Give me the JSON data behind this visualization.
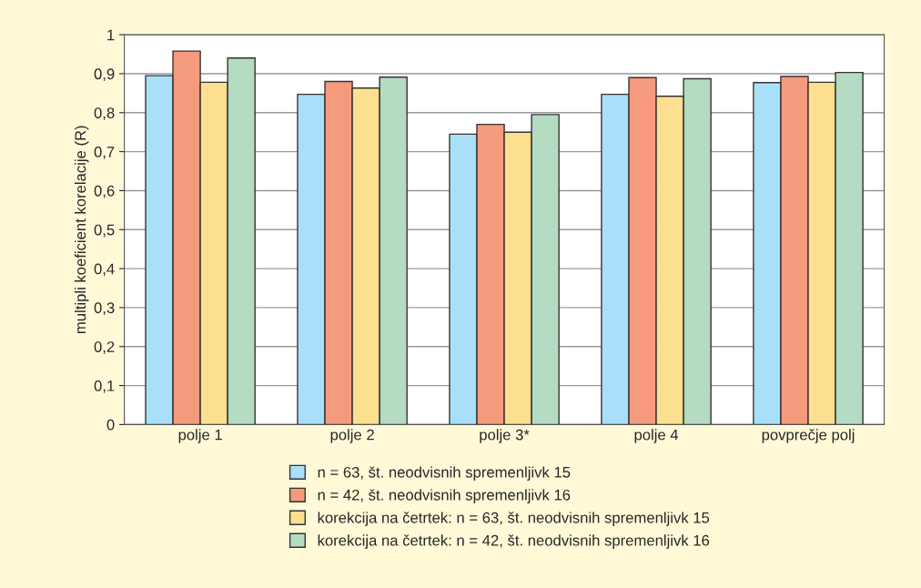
{
  "chart_data": {
    "type": "bar",
    "ylabel": "multipli koeficient korelacije (R)",
    "categories": [
      "polje 1",
      "polje 2",
      "polje 3*",
      "polje 4",
      "povprečje polj"
    ],
    "series": [
      {
        "name": "n = 63, št. neodvisnih spremenljivk 15",
        "color": "#aadff9",
        "values": [
          0.895,
          0.847,
          0.745,
          0.847,
          0.877
        ]
      },
      {
        "name": "n = 42, št. neodvisnih spremenljivk 16",
        "color": "#f59a7c",
        "values": [
          0.958,
          0.88,
          0.77,
          0.89,
          0.893
        ]
      },
      {
        "name": "korekcija na četrtek: n = 63, št. neodvisnih spremenljivk 15",
        "color": "#fde08f",
        "values": [
          0.878,
          0.863,
          0.75,
          0.842,
          0.878
        ]
      },
      {
        "name": "korekcija na četrtek: n = 42, št. neodvisnih spremenljivk 16",
        "color": "#b4dcc2",
        "values": [
          0.94,
          0.891,
          0.795,
          0.887,
          0.903
        ]
      }
    ],
    "ylim": [
      0,
      1
    ],
    "yticks": [
      {
        "value": 0,
        "label": "0"
      },
      {
        "value": 0.1,
        "label": "0,1"
      },
      {
        "value": 0.2,
        "label": "0,2"
      },
      {
        "value": 0.3,
        "label": "0,3"
      },
      {
        "value": 0.4,
        "label": "0,4"
      },
      {
        "value": 0.5,
        "label": "0,5"
      },
      {
        "value": 0.6,
        "label": "0,6"
      },
      {
        "value": 0.7,
        "label": "0,7"
      },
      {
        "value": 0.8,
        "label": "0,8"
      },
      {
        "value": 0.9,
        "label": "0,9"
      },
      {
        "value": 1,
        "label": "1"
      }
    ],
    "grid": "y",
    "legend": "bottom"
  }
}
